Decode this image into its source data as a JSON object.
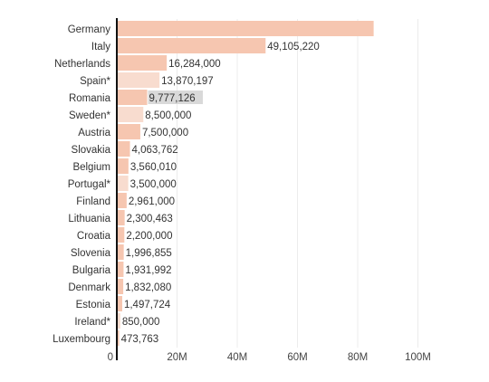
{
  "chart_data": {
    "type": "bar",
    "orientation": "horizontal",
    "title": "",
    "xlabel": "",
    "ylabel": "",
    "xlim": [
      0,
      100000000
    ],
    "grid": "vertical",
    "categories": [
      "Germany",
      "Italy",
      "Netherlands",
      "Spain*",
      "Romania",
      "Sweden*",
      "Austria",
      "Slovakia",
      "Belgium",
      "Portugal*",
      "Finland",
      "Lithuania",
      "Croatia",
      "Slovenia",
      "Bulgaria",
      "Denmark",
      "Estonia",
      "Ireland*",
      "Luxembourg"
    ],
    "values": [
      85000000,
      49105220,
      16284000,
      13870197,
      9777126,
      8500000,
      7500000,
      4063762,
      3560010,
      3500000,
      2961000,
      2300463,
      2200000,
      1996855,
      1931992,
      1832080,
      1497724,
      850000,
      473763
    ],
    "value_labels": [
      "",
      "49,105,220",
      "16,284,000",
      "13,870,197",
      "9,777,126",
      "8,500,000",
      "7,500,000",
      "4,063,762",
      "3,560,010",
      "3,500,000",
      "2,961,000",
      "2,300,463",
      "2,200,000",
      "1,996,855",
      "1,931,992",
      "1,832,080",
      "1,497,724",
      "850,000",
      "473,763"
    ],
    "bar_colors": [
      "#f6c6b0",
      "#f6c6b0",
      "#f6c6b0",
      "#f8dccf",
      "#f6c6b0",
      "#f8dccf",
      "#f6c6b0",
      "#f6c6b0",
      "#f6c6b0",
      "#f8dccf",
      "#f6c6b0",
      "#f6c6b0",
      "#f6c6b0",
      "#f6c6b0",
      "#f6c6b0",
      "#f6c6b0",
      "#f6c6b0",
      "#f8dccf",
      "#f6c6b0"
    ],
    "highlighted_label_index": 4,
    "highlight_color": "#d9d9d9",
    "x_ticks": [
      {
        "value": 0,
        "label": "0"
      },
      {
        "value": 20000000,
        "label": "20M"
      },
      {
        "value": 40000000,
        "label": "40M"
      },
      {
        "value": 60000000,
        "label": "60M"
      },
      {
        "value": 80000000,
        "label": "80M"
      },
      {
        "value": 100000000,
        "label": "100M"
      }
    ]
  }
}
